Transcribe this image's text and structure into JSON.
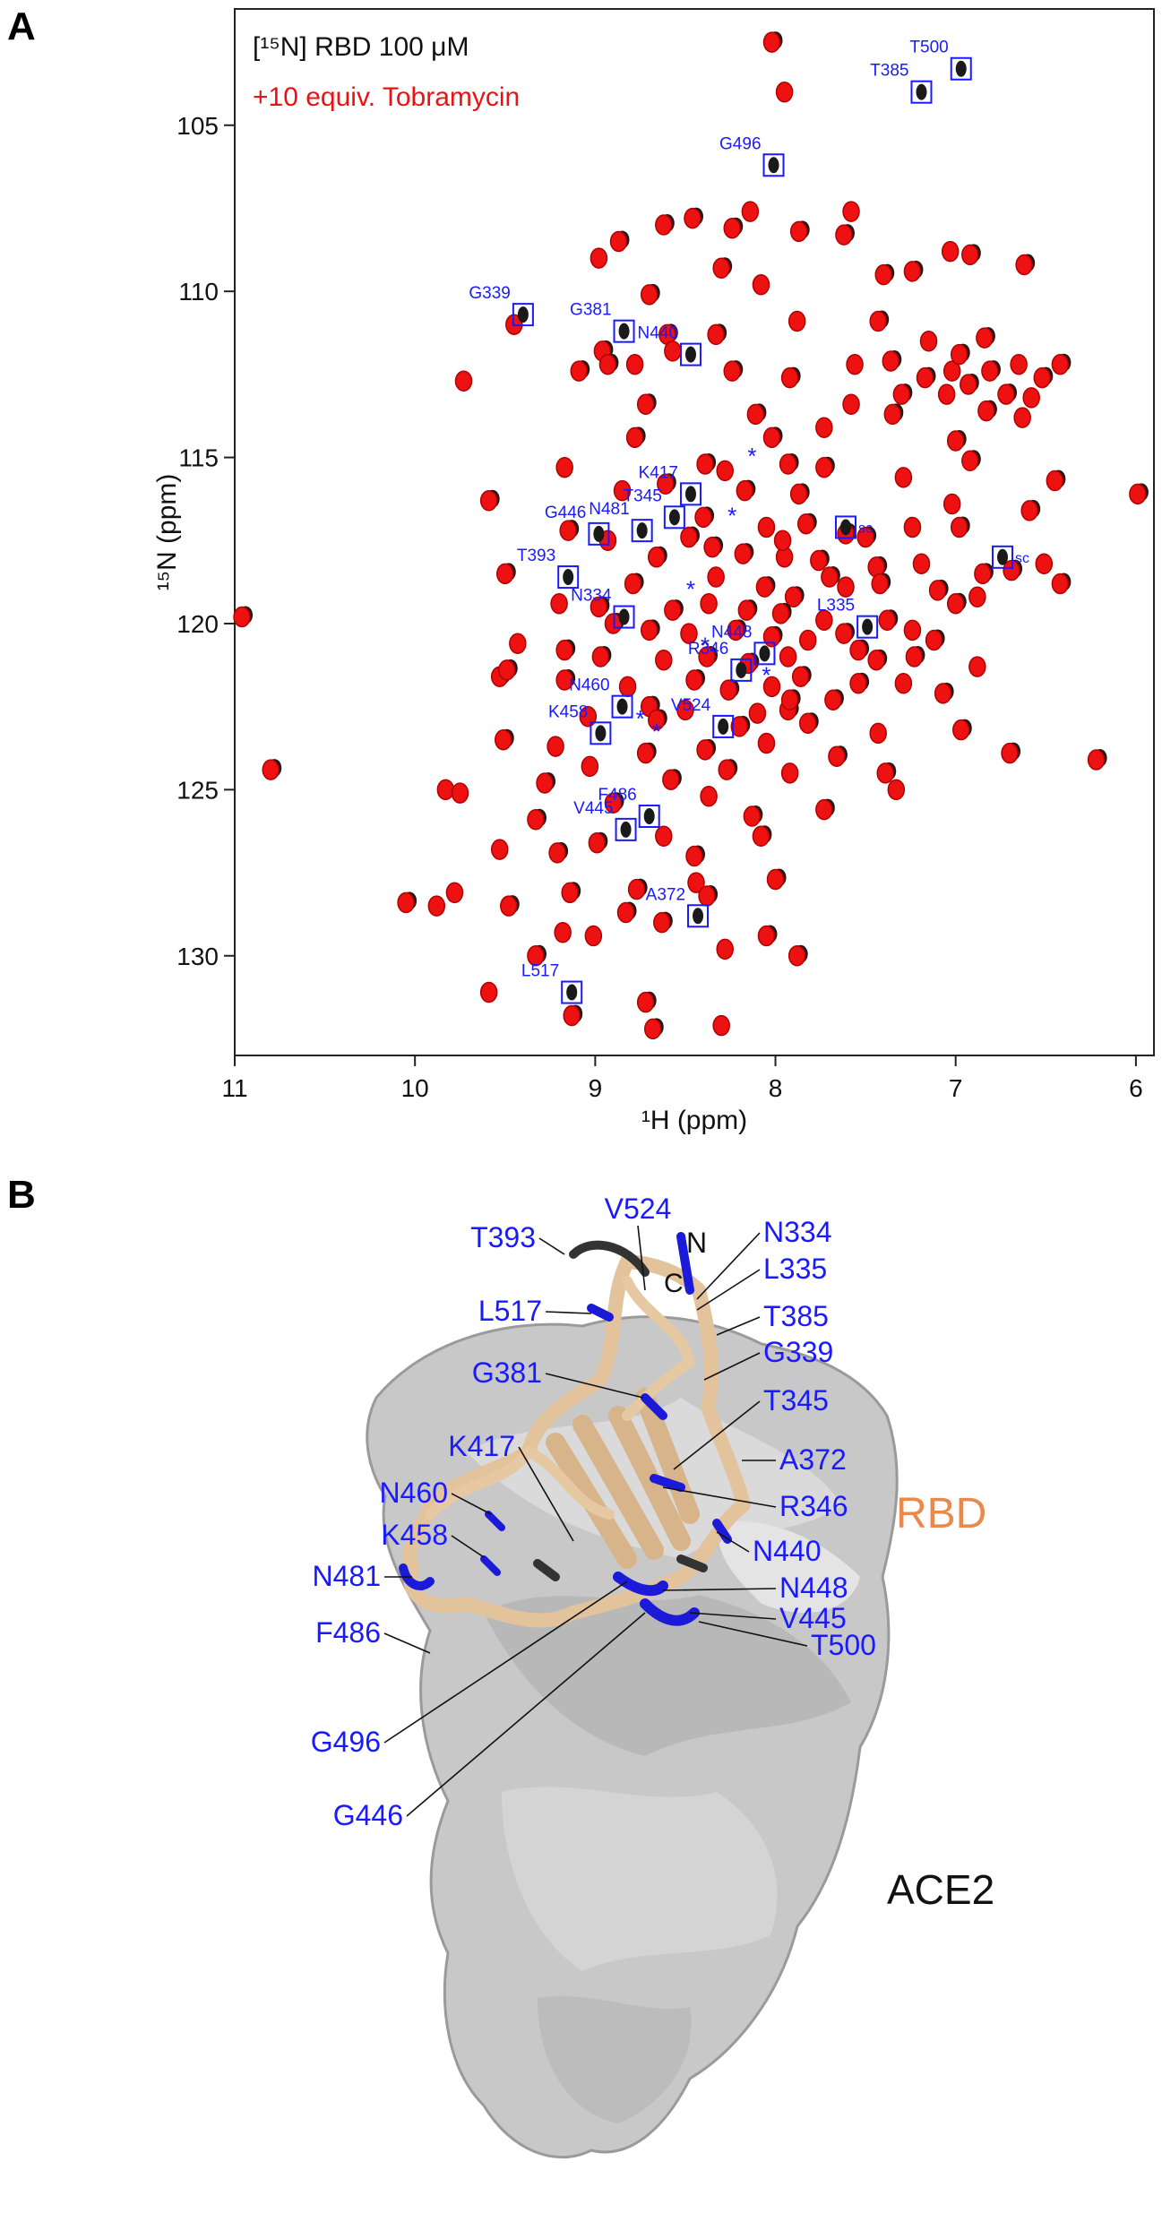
{
  "panels": {
    "a": "A",
    "b": "B"
  },
  "chart_data": {
    "type": "scatter",
    "title": "",
    "xlabel": "¹H (ppm)",
    "ylabel": "¹⁵N (ppm)",
    "xlim": [
      11,
      5.9
    ],
    "ylim": [
      133,
      101.5
    ],
    "x_ticks": [
      "11",
      "10",
      "9",
      "8",
      "7",
      "6"
    ],
    "y_ticks": [
      "105",
      "110",
      "115",
      "120",
      "125",
      "130"
    ],
    "legend": [
      {
        "label": "[¹⁵N] RBD 100 μM",
        "color": "#111111"
      },
      {
        "label": "+10 equiv. Tobramycin",
        "color": "#ee1111"
      }
    ],
    "series": [
      {
        "name": "[¹⁵N] RBD 100 μM",
        "color": "#111111"
      },
      {
        "name": "+10 equiv. Tobramycin",
        "color": "#ee1111",
        "points": [
          [
            8.02,
            102.5
          ],
          [
            7.95,
            104.0
          ],
          [
            8.46,
            107.8
          ],
          [
            8.24,
            108.1
          ],
          [
            8.14,
            107.6
          ],
          [
            7.87,
            108.2
          ],
          [
            7.62,
            108.3
          ],
          [
            7.58,
            107.6
          ],
          [
            8.62,
            108.0
          ],
          [
            8.87,
            108.5
          ],
          [
            8.98,
            109.0
          ],
          [
            8.7,
            110.1
          ],
          [
            8.3,
            109.3
          ],
          [
            8.08,
            109.8
          ],
          [
            7.4,
            109.5
          ],
          [
            7.24,
            109.4
          ],
          [
            7.03,
            108.8
          ],
          [
            6.92,
            108.9
          ],
          [
            6.62,
            109.2
          ],
          [
            7.88,
            110.9
          ],
          [
            8.6,
            111.3
          ],
          [
            8.96,
            111.8
          ],
          [
            9.45,
            111.0
          ],
          [
            8.93,
            112.2
          ],
          [
            9.09,
            112.4
          ],
          [
            8.57,
            111.8
          ],
          [
            8.24,
            112.4
          ],
          [
            7.92,
            112.6
          ],
          [
            7.56,
            112.2
          ],
          [
            7.36,
            112.1
          ],
          [
            7.17,
            112.6
          ],
          [
            7.02,
            112.4
          ],
          [
            6.93,
            112.8
          ],
          [
            6.81,
            112.4
          ],
          [
            6.65,
            112.2
          ],
          [
            6.52,
            112.6
          ],
          [
            6.42,
            112.2
          ],
          [
            9.73,
            112.7
          ],
          [
            8.72,
            113.4
          ],
          [
            8.11,
            113.7
          ],
          [
            7.58,
            113.4
          ],
          [
            7.3,
            113.1
          ],
          [
            6.83,
            113.6
          ],
          [
            6.58,
            113.2
          ],
          [
            8.78,
            114.4
          ],
          [
            8.02,
            114.4
          ],
          [
            7.73,
            114.1
          ],
          [
            7.0,
            114.5
          ],
          [
            8.39,
            115.2
          ],
          [
            8.28,
            115.4
          ],
          [
            7.93,
            115.2
          ],
          [
            7.73,
            115.3
          ],
          [
            7.29,
            115.6
          ],
          [
            6.92,
            115.1
          ],
          [
            6.45,
            115.7
          ],
          [
            9.17,
            115.3
          ],
          [
            8.61,
            115.8
          ],
          [
            9.59,
            116.3
          ],
          [
            8.85,
            116.0
          ],
          [
            8.17,
            116.0
          ],
          [
            7.87,
            116.1
          ],
          [
            7.02,
            116.4
          ],
          [
            6.59,
            116.6
          ],
          [
            8.4,
            116.8
          ],
          [
            8.05,
            117.1
          ],
          [
            7.83,
            117.0
          ],
          [
            7.61,
            117.3
          ],
          [
            7.24,
            117.1
          ],
          [
            6.98,
            117.1
          ],
          [
            9.15,
            117.2
          ],
          [
            8.93,
            117.5
          ],
          [
            8.48,
            117.4
          ],
          [
            8.18,
            117.9
          ],
          [
            7.95,
            118.0
          ],
          [
            7.76,
            118.1
          ],
          [
            7.44,
            118.3
          ],
          [
            7.19,
            118.2
          ],
          [
            6.85,
            118.5
          ],
          [
            6.69,
            118.4
          ],
          [
            6.51,
            118.2
          ],
          [
            9.5,
            118.5
          ],
          [
            8.79,
            118.8
          ],
          [
            8.33,
            118.6
          ],
          [
            8.06,
            118.9
          ],
          [
            7.9,
            119.2
          ],
          [
            7.61,
            118.9
          ],
          [
            7.42,
            118.8
          ],
          [
            7.1,
            119.0
          ],
          [
            9.2,
            119.4
          ],
          [
            8.98,
            119.5
          ],
          [
            8.57,
            119.6
          ],
          [
            8.37,
            119.4
          ],
          [
            8.16,
            119.6
          ],
          [
            7.97,
            119.7
          ],
          [
            7.73,
            119.9
          ],
          [
            7.38,
            119.9
          ],
          [
            7.0,
            119.4
          ],
          [
            6.88,
            119.2
          ],
          [
            8.9,
            120.0
          ],
          [
            8.7,
            120.2
          ],
          [
            8.48,
            120.3
          ],
          [
            8.22,
            120.2
          ],
          [
            8.02,
            120.4
          ],
          [
            7.82,
            120.5
          ],
          [
            7.62,
            120.3
          ],
          [
            7.12,
            120.5
          ],
          [
            9.43,
            120.6
          ],
          [
            9.17,
            120.8
          ],
          [
            8.97,
            121.0
          ],
          [
            8.62,
            121.1
          ],
          [
            8.38,
            121.0
          ],
          [
            8.15,
            121.2
          ],
          [
            7.93,
            121.0
          ],
          [
            7.44,
            121.1
          ],
          [
            7.23,
            121.0
          ],
          [
            6.88,
            121.3
          ],
          [
            9.53,
            121.6
          ],
          [
            9.17,
            121.7
          ],
          [
            8.82,
            121.9
          ],
          [
            8.45,
            121.7
          ],
          [
            8.26,
            122.0
          ],
          [
            8.02,
            121.9
          ],
          [
            7.86,
            121.6
          ],
          [
            7.54,
            121.8
          ],
          [
            7.29,
            121.8
          ],
          [
            7.07,
            122.1
          ],
          [
            8.7,
            122.5
          ],
          [
            8.5,
            122.6
          ],
          [
            7.93,
            122.6
          ],
          [
            7.68,
            122.3
          ],
          [
            9.04,
            122.8
          ],
          [
            8.2,
            123.1
          ],
          [
            7.82,
            123.0
          ],
          [
            7.43,
            123.3
          ],
          [
            6.97,
            123.2
          ],
          [
            9.51,
            123.5
          ],
          [
            9.22,
            123.7
          ],
          [
            8.72,
            123.9
          ],
          [
            8.39,
            123.8
          ],
          [
            8.05,
            123.6
          ],
          [
            7.66,
            124.0
          ],
          [
            6.7,
            123.9
          ],
          [
            9.03,
            124.3
          ],
          [
            8.58,
            124.7
          ],
          [
            8.27,
            124.4
          ],
          [
            7.92,
            124.5
          ],
          [
            7.39,
            124.5
          ],
          [
            6.22,
            124.1
          ],
          [
            9.83,
            125.0
          ],
          [
            9.28,
            124.8
          ],
          [
            8.9,
            125.4
          ],
          [
            8.37,
            125.2
          ],
          [
            8.13,
            125.8
          ],
          [
            7.73,
            125.6
          ],
          [
            7.33,
            125.0
          ],
          [
            9.33,
            125.9
          ],
          [
            8.99,
            126.6
          ],
          [
            8.62,
            126.4
          ],
          [
            8.45,
            127.0
          ],
          [
            8.08,
            126.4
          ],
          [
            9.53,
            126.8
          ],
          [
            9.21,
            126.9
          ],
          [
            8.0,
            127.7
          ],
          [
            8.44,
            127.8
          ],
          [
            9.14,
            128.1
          ],
          [
            8.77,
            128.0
          ],
          [
            9.78,
            128.1
          ],
          [
            8.38,
            128.2
          ],
          [
            10.05,
            128.4
          ],
          [
            9.88,
            128.5
          ],
          [
            9.48,
            128.5
          ],
          [
            8.83,
            128.7
          ],
          [
            9.18,
            129.3
          ],
          [
            8.63,
            129.0
          ],
          [
            8.05,
            129.4
          ],
          [
            8.28,
            129.8
          ],
          [
            7.88,
            130.0
          ],
          [
            9.33,
            130.0
          ],
          [
            9.01,
            129.4
          ],
          [
            10.8,
            124.4
          ],
          [
            10.96,
            119.8
          ],
          [
            9.59,
            131.1
          ],
          [
            9.13,
            131.8
          ],
          [
            8.72,
            131.4
          ],
          [
            8.3,
            132.1
          ],
          [
            8.68,
            132.2
          ],
          [
            9.49,
            121.4
          ],
          [
            9.75,
            125.1
          ],
          [
            5.99,
            116.1
          ],
          [
            6.42,
            118.8
          ],
          [
            6.63,
            113.8
          ],
          [
            6.84,
            111.4
          ],
          [
            7.35,
            113.7
          ],
          [
            7.05,
            113.1
          ],
          [
            6.72,
            113.1
          ],
          [
            6.98,
            111.9
          ],
          [
            7.15,
            111.5
          ],
          [
            7.43,
            110.9
          ],
          [
            8.33,
            111.3
          ],
          [
            8.78,
            112.2
          ],
          [
            7.5,
            117.4
          ],
          [
            7.7,
            118.6
          ],
          [
            7.96,
            117.5
          ],
          [
            8.35,
            117.7
          ],
          [
            8.66,
            118.0
          ],
          [
            7.24,
            120.2
          ],
          [
            7.54,
            120.8
          ],
          [
            7.92,
            122.3
          ],
          [
            8.1,
            122.7
          ],
          [
            8.66,
            122.9
          ]
        ]
      }
    ],
    "annotations": [
      {
        "text": "T500",
        "x": 6.97,
        "y": 103.3
      },
      {
        "text": "T385",
        "x": 7.19,
        "y": 104.0
      },
      {
        "text": "G496",
        "x": 8.01,
        "y": 106.2
      },
      {
        "text": "G339",
        "x": 9.4,
        "y": 110.7
      },
      {
        "text": "G381",
        "x": 8.84,
        "y": 111.2
      },
      {
        "text": "N440",
        "x": 8.47,
        "y": 111.9
      },
      {
        "text": "*",
        "x": 8.13,
        "y": 115.2
      },
      {
        "text": "K417",
        "x": 8.47,
        "y": 116.1
      },
      {
        "text": "G446",
        "x": 8.98,
        "y": 117.3
      },
      {
        "text": "N481",
        "x": 8.74,
        "y": 117.2
      },
      {
        "text": "T345",
        "x": 8.56,
        "y": 116.8
      },
      {
        "text": "*",
        "x": 8.24,
        "y": 117.0
      },
      {
        "text": "sc",
        "x": 7.61,
        "y": 117.1
      },
      {
        "text": "sc",
        "x": 6.74,
        "y": 118.0
      },
      {
        "text": "T393",
        "x": 9.15,
        "y": 118.6
      },
      {
        "text": "*",
        "x": 8.47,
        "y": 119.2
      },
      {
        "text": "N334",
        "x": 8.84,
        "y": 119.8
      },
      {
        "text": "L335",
        "x": 7.49,
        "y": 120.1
      },
      {
        "text": "N448",
        "x": 8.06,
        "y": 120.9
      },
      {
        "text": "R346",
        "x": 8.19,
        "y": 121.4
      },
      {
        "text": "*",
        "x": 8.05,
        "y": 121.8
      },
      {
        "text": "*",
        "x": 8.39,
        "y": 120.9
      },
      {
        "text": "N460",
        "x": 8.85,
        "y": 122.5
      },
      {
        "text": "K458",
        "x": 8.97,
        "y": 123.3
      },
      {
        "text": "*",
        "x": 8.75,
        "y": 123.1
      },
      {
        "text": "*",
        "x": 8.66,
        "y": 123.5
      },
      {
        "text": "V524",
        "x": 8.29,
        "y": 123.1
      },
      {
        "text": "V445",
        "x": 8.83,
        "y": 126.2
      },
      {
        "text": "F486",
        "x": 8.7,
        "y": 125.8
      },
      {
        "text": "A372",
        "x": 8.43,
        "y": 128.8
      },
      {
        "text": "L517",
        "x": 9.13,
        "y": 131.1
      }
    ]
  },
  "structure": {
    "protein_label": "RBD",
    "receptor_label": "ACE2",
    "protein_color": "#e8894e",
    "terminus_n": "N",
    "terminus_c": "C",
    "residue_labels": [
      "T393",
      "V524",
      "N334",
      "L335",
      "T385",
      "G339",
      "L517",
      "G381",
      "T345",
      "A372",
      "R346",
      "K417",
      "N460",
      "K458",
      "N440",
      "N481",
      "N448",
      "V445",
      "T500",
      "F486",
      "G496",
      "G446"
    ]
  }
}
